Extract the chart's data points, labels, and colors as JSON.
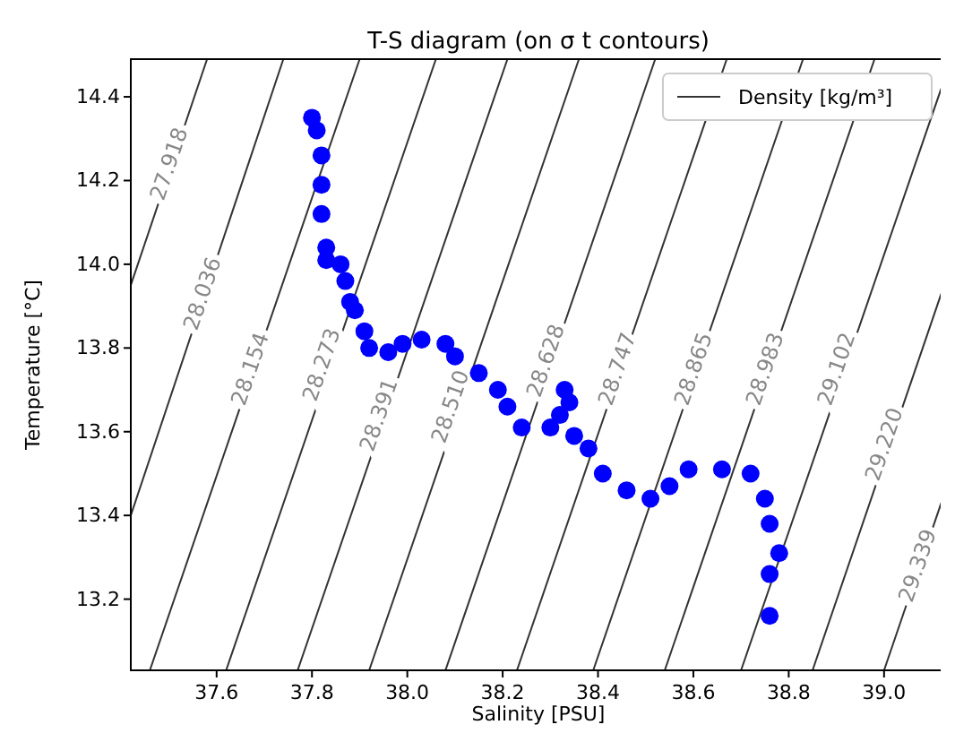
{
  "chart_data": {
    "type": "scatter",
    "title": "T-S diagram (on σ t contours)",
    "xlabel": "Salinity [PSU]",
    "ylabel": "Temperature [°C]",
    "xlim": [
      37.42,
      39.13
    ],
    "ylim": [
      13.03,
      14.49
    ],
    "xticks": [
      37.6,
      37.8,
      {
        "value": 38,
        "label": "38.0"
      },
      38.2,
      38.4,
      38.6,
      38.8,
      {
        "value": 39,
        "label": "39.0"
      }
    ],
    "yticks": [
      13.2,
      13.4,
      13.6,
      13.8,
      {
        "value": 14,
        "label": "14.0"
      },
      14.2,
      14.4
    ],
    "grid": false,
    "legend": "top right",
    "series": [
      {
        "type": "line",
        "name": "Density [kg/m³]",
        "color": "#333333",
        "x": [
          37.42,
          37.58
        ],
        "values": [
          13.95,
          14.49
        ]
      },
      {
        "type": "line",
        "color": "#333333",
        "x": [
          37.42,
          37.74
        ],
        "values": [
          13.4,
          14.49
        ]
      },
      {
        "type": "line",
        "color": "#333333",
        "x": [
          37.46,
          37.9
        ],
        "values": [
          13.03,
          14.49
        ]
      },
      {
        "type": "line",
        "color": "#333333",
        "x": [
          37.62,
          38.06
        ],
        "values": [
          13.03,
          14.49
        ]
      },
      {
        "type": "line",
        "color": "#333333",
        "x": [
          37.77,
          38.21
        ],
        "values": [
          13.03,
          14.49
        ]
      },
      {
        "type": "line",
        "color": "#333333",
        "x": [
          37.92,
          38.36
        ],
        "values": [
          13.03,
          14.49
        ]
      },
      {
        "type": "line",
        "color": "#333333",
        "x": [
          38.08,
          38.52
        ],
        "values": [
          13.03,
          14.49
        ]
      },
      {
        "type": "line",
        "color": "#333333",
        "x": [
          38.23,
          38.67
        ],
        "values": [
          13.03,
          14.49
        ]
      },
      {
        "type": "line",
        "color": "#333333",
        "x": [
          38.39,
          38.83
        ],
        "values": [
          13.03,
          14.49
        ]
      },
      {
        "type": "line",
        "color": "#333333",
        "x": [
          38.54,
          38.98
        ],
        "values": [
          13.03,
          14.49
        ]
      },
      {
        "type": "line",
        "color": "#333333",
        "x": [
          38.7,
          39.12
        ],
        "values": [
          13.03,
          14.42
        ]
      },
      {
        "type": "line",
        "color": "#333333",
        "x": [
          38.85,
          39.12
        ],
        "values": [
          13.03,
          13.93
        ]
      },
      {
        "type": "line",
        "color": "#333333",
        "x": [
          39.0,
          39.12
        ],
        "values": [
          13.03,
          13.43
        ]
      },
      {
        "marker": "circle",
        "color": "#0000ff",
        "x": [
          37.8,
          37.81,
          37.82,
          37.82,
          37.82,
          37.83,
          37.83,
          37.86,
          37.87,
          37.88,
          37.89,
          37.91,
          37.92,
          37.96,
          37.99,
          38.03,
          38.08,
          38.1,
          38.15,
          38.19,
          38.21,
          38.24,
          38.3,
          38.32,
          38.33,
          38.34,
          38.35,
          38.38,
          38.41,
          38.46,
          38.51,
          38.55,
          38.59,
          38.66,
          38.72,
          38.75,
          38.76,
          38.78,
          38.76,
          38.76
        ],
        "values": [
          14.35,
          14.32,
          14.26,
          14.19,
          14.12,
          14.04,
          14.01,
          14.0,
          13.96,
          13.91,
          13.89,
          13.84,
          13.8,
          13.79,
          13.81,
          13.82,
          13.81,
          13.78,
          13.74,
          13.7,
          13.66,
          13.61,
          13.61,
          13.64,
          13.7,
          13.67,
          13.59,
          13.56,
          13.5,
          13.46,
          13.44,
          13.47,
          13.51,
          13.51,
          13.5,
          13.44,
          13.38,
          13.31,
          13.26,
          13.16
        ]
      }
    ],
    "annotations": [
      {
        "text": "27.918",
        "x": 37.5,
        "y": 14.24
      },
      {
        "text": "28.036",
        "x": 37.57,
        "y": 13.93
      },
      {
        "text": "28.154",
        "x": 37.67,
        "y": 13.75
      },
      {
        "text": "28.273",
        "x": 37.82,
        "y": 13.76
      },
      {
        "text": "28.391",
        "x": 37.94,
        "y": 13.64
      },
      {
        "text": "28.510",
        "x": 38.09,
        "y": 13.66
      },
      {
        "text": "28.628",
        "x": 38.29,
        "y": 13.77
      },
      {
        "text": "28.747",
        "x": 38.44,
        "y": 13.75
      },
      {
        "text": "28.865",
        "x": 38.6,
        "y": 13.75
      },
      {
        "text": "28.983",
        "x": 38.75,
        "y": 13.75
      },
      {
        "text": "29.102",
        "x": 38.9,
        "y": 13.75
      },
      {
        "text": "29.220",
        "x": 39.0,
        "y": 13.57
      },
      {
        "text": "29.339",
        "x": 39.07,
        "y": 13.28
      }
    ]
  }
}
